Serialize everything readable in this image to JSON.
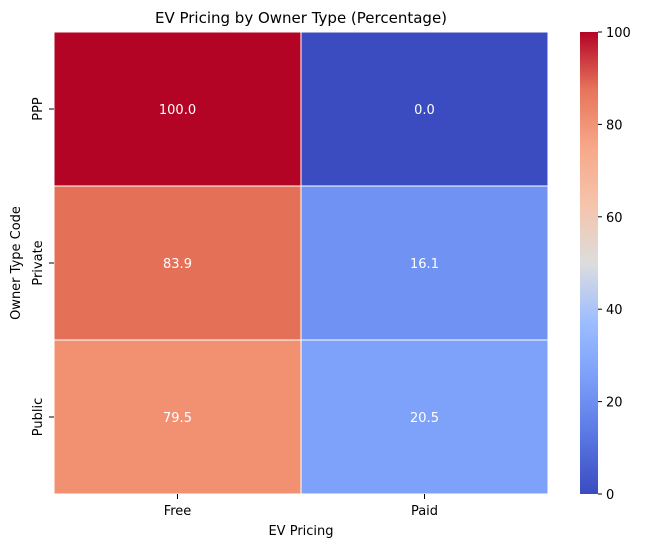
{
  "chart_data": {
    "type": "heatmap",
    "title": "EV Pricing by Owner Type (Percentage)",
    "xlabel": "EV Pricing",
    "ylabel": "Owner Type Code",
    "x_categories": [
      "Free",
      "Paid"
    ],
    "y_categories": [
      "PPP",
      "Private",
      "Public"
    ],
    "values": [
      [
        100.0,
        0.0
      ],
      [
        83.9,
        16.1
      ],
      [
        79.5,
        20.5
      ]
    ],
    "value_labels": [
      [
        "100.0",
        "0.0"
      ],
      [
        "83.9",
        "16.1"
      ],
      [
        "79.5",
        "20.5"
      ]
    ],
    "colormap": "coolwarm",
    "colorbar": {
      "range": [
        0,
        100
      ],
      "ticks": [
        0,
        20,
        40,
        60,
        80,
        100
      ],
      "tick_labels": [
        "0",
        "20",
        "40",
        "60",
        "80",
        "100"
      ]
    },
    "cell_colors": [
      [
        "#b40426",
        "#3b4cc0"
      ],
      [
        "#e57058",
        "#6f92f3"
      ],
      [
        "#f29072",
        "#7ea1fa"
      ]
    ],
    "annotation_color": "#ffffff"
  }
}
